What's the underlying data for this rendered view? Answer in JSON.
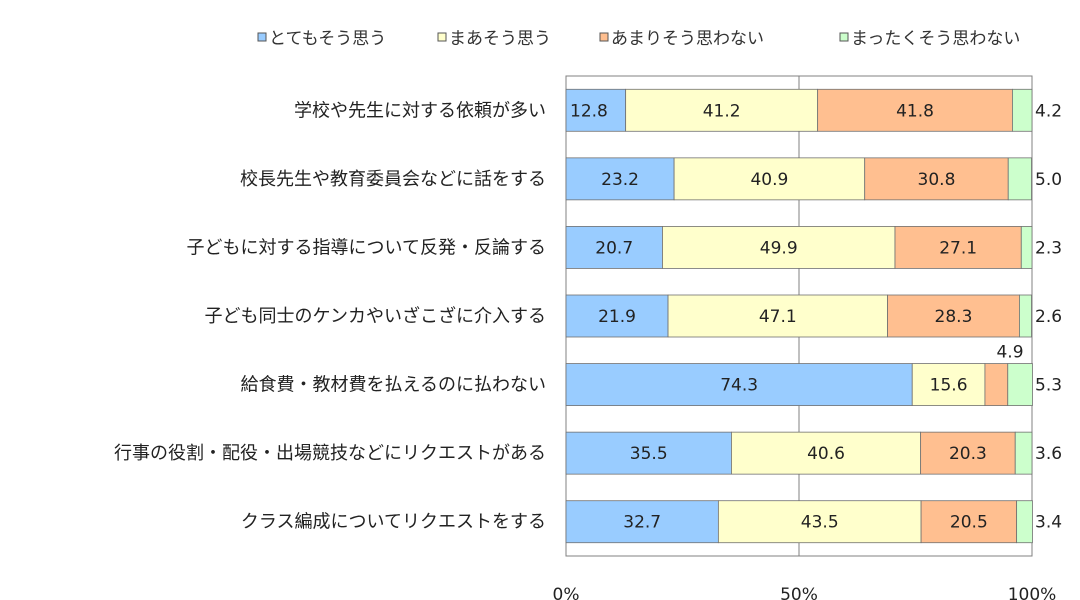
{
  "chart_data": {
    "type": "bar",
    "orientation": "horizontal",
    "stacked": true,
    "percent": true,
    "legend_position": "top",
    "grid": true,
    "categories": [
      "学校や先生に対する依頼が多い",
      "校長先生や教育委員会などに話をする",
      "子どもに対する指導について反発・反論する",
      "子ども同士のケンカやいざこざに介入する",
      "給食費・教材費を払えるのに払わない",
      "行事の役割・配役・出場競技などにリクエストがある",
      "クラス編成についてリクエストをする"
    ],
    "series": [
      {
        "name": "とてもそう思う",
        "color": "#99ccff",
        "values": [
          12.8,
          23.2,
          20.7,
          21.9,
          74.3,
          35.5,
          32.7
        ]
      },
      {
        "name": "まあそう思う",
        "color": "#ffffcc",
        "values": [
          41.2,
          40.9,
          49.9,
          47.1,
          15.6,
          40.6,
          43.5
        ]
      },
      {
        "name": "あまりそう思わない",
        "color": "#ffbf90",
        "values": [
          41.8,
          30.8,
          27.1,
          28.3,
          4.9,
          20.3,
          20.5
        ]
      },
      {
        "name": "まったくそう思わない",
        "color": "#ccffcc",
        "values": [
          4.2,
          5.0,
          2.3,
          2.6,
          5.3,
          3.6,
          3.4
        ]
      }
    ],
    "xticks": [
      "0%",
      "50%",
      "100%"
    ],
    "xlim": [
      0,
      100
    ]
  }
}
